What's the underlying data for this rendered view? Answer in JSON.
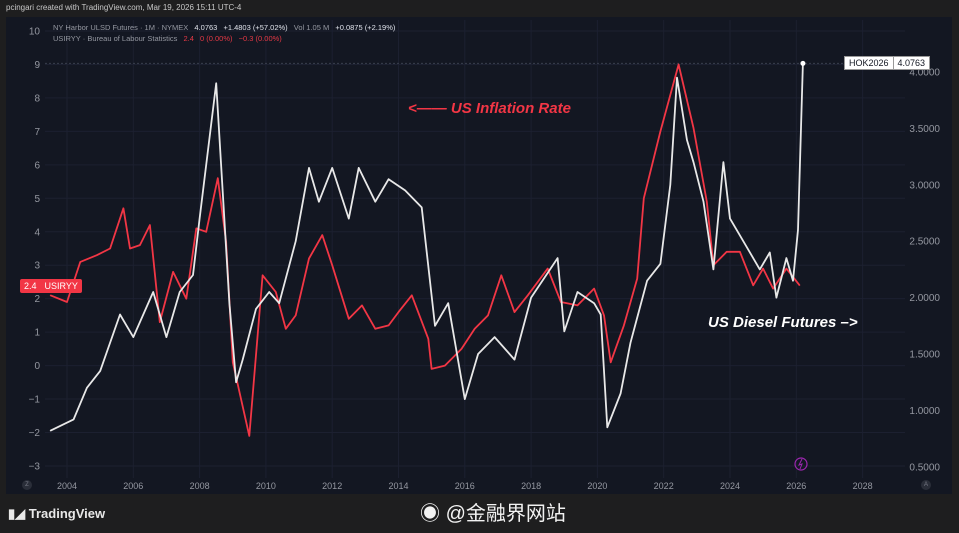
{
  "credit": "pcingari created with TradingView.com, Mar 19, 2026 15:11 UTC-4",
  "legend": {
    "series1_title": "NY Harbor ULSD Futures · 1M · NYMEX",
    "series1_price": "4.0763",
    "series1_change": "+1.4803 (+57.02%)",
    "series1_vol": "Vol 1.05 M",
    "series1_change2": "+0.0875 (+2.19%)",
    "series2_title": "USIRYY · Bureau of Labour Statistics",
    "series2_value": "2.4",
    "series2_change": "0 (0.00%)",
    "series2_change2": "−0.3 (0.00%)"
  },
  "annotations": {
    "inflation": "<—— US Inflation Rate",
    "diesel": "US Diesel Futures –>"
  },
  "tags": {
    "cpi_value": "2.4",
    "cpi_symbol": "USIRYY",
    "price_symbol": "HOK2026",
    "price_value": "4.0763"
  },
  "branding": "TradingView",
  "watermark": "@金融界网站",
  "corner_left": "Z",
  "corner_right": "A",
  "colors": {
    "cpi": "#f23645",
    "diesel": "#e8e8e8",
    "background": "#131722",
    "event_icon": "#9c27b0"
  },
  "chart_data": {
    "type": "line",
    "x_ticks": [
      "2004",
      "2006",
      "2008",
      "2010",
      "2012",
      "2014",
      "2016",
      "2018",
      "2020",
      "2022",
      "2024",
      "2026",
      "2028"
    ],
    "xlim": [
      2003.4,
      2029.5
    ],
    "left_axis": {
      "ticks": [
        "10",
        "9",
        "8",
        "7",
        "6",
        "5",
        "4",
        "3",
        "2",
        "1",
        "0",
        "−1",
        "−2",
        "−3"
      ],
      "ylim": [
        -3,
        10
      ]
    },
    "right_axis": {
      "ticks": [
        "4.0000",
        "3.5000",
        "3.0000",
        "2.5000",
        "2.0000",
        "1.5000",
        "1.0000",
        "0.5000"
      ],
      "ylim": [
        0.5,
        4.0763
      ]
    },
    "grid": true,
    "series": [
      {
        "name": "USIRYY",
        "axis": "left",
        "x": [
          2003.5,
          2004.0,
          2004.4,
          2004.9,
          2005.3,
          2005.7,
          2005.9,
          2006.2,
          2006.5,
          2006.8,
          2007.2,
          2007.6,
          2007.9,
          2008.2,
          2008.55,
          2008.8,
          2009.0,
          2009.5,
          2009.9,
          2010.3,
          2010.6,
          2010.9,
          2011.3,
          2011.7,
          2012.0,
          2012.5,
          2012.9,
          2013.3,
          2013.7,
          2014.0,
          2014.4,
          2014.9,
          2015.0,
          2015.4,
          2015.9,
          2016.3,
          2016.7,
          2017.1,
          2017.5,
          2017.9,
          2018.5,
          2018.9,
          2019.4,
          2019.9,
          2020.2,
          2020.4,
          2020.8,
          2021.2,
          2021.4,
          2021.9,
          2022.45,
          2022.9,
          2023.3,
          2023.5,
          2023.9,
          2024.3,
          2024.7,
          2025.0,
          2025.3,
          2025.7,
          2026.1
        ],
        "y": [
          2.1,
          1.9,
          3.1,
          3.3,
          3.5,
          4.7,
          3.5,
          3.6,
          4.2,
          1.3,
          2.8,
          2.0,
          4.1,
          4.0,
          5.6,
          3.7,
          0.1,
          -2.1,
          2.7,
          2.2,
          1.1,
          1.5,
          3.2,
          3.9,
          3.0,
          1.4,
          1.8,
          1.1,
          1.2,
          1.6,
          2.1,
          0.8,
          -0.1,
          0.0,
          0.5,
          1.1,
          1.5,
          2.7,
          1.6,
          2.1,
          2.9,
          1.9,
          1.8,
          2.3,
          1.5,
          0.1,
          1.2,
          2.6,
          5.0,
          7.0,
          9.0,
          7.1,
          4.9,
          3.0,
          3.4,
          3.4,
          2.4,
          2.9,
          2.3,
          2.9,
          2.4
        ]
      },
      {
        "name": "NY Harbor ULSD Futures",
        "axis": "right",
        "x": [
          2003.5,
          2004.2,
          2004.6,
          2005.0,
          2005.6,
          2006.0,
          2006.6,
          2007.0,
          2007.4,
          2007.8,
          2008.0,
          2008.5,
          2008.9,
          2009.1,
          2009.3,
          2009.7,
          2010.1,
          2010.4,
          2010.9,
          2011.3,
          2011.6,
          2012.0,
          2012.5,
          2012.8,
          2013.3,
          2013.7,
          2014.2,
          2014.7,
          2015.1,
          2015.5,
          2016.0,
          2016.4,
          2016.9,
          2017.5,
          2018.0,
          2018.8,
          2019.0,
          2019.4,
          2019.9,
          2020.1,
          2020.3,
          2020.7,
          2021.0,
          2021.5,
          2021.9,
          2022.2,
          2022.4,
          2022.7,
          2022.9,
          2023.2,
          2023.5,
          2023.8,
          2024.0,
          2024.5,
          2024.9,
          2025.2,
          2025.4,
          2025.7,
          2025.9,
          2026.05,
          2026.2
        ],
        "y": [
          0.82,
          0.92,
          1.2,
          1.35,
          1.85,
          1.65,
          2.05,
          1.65,
          2.05,
          2.2,
          2.7,
          3.9,
          1.95,
          1.25,
          1.45,
          1.9,
          2.05,
          1.95,
          2.5,
          3.15,
          2.85,
          3.15,
          2.7,
          3.15,
          2.85,
          3.05,
          2.95,
          2.8,
          1.75,
          1.95,
          1.1,
          1.5,
          1.65,
          1.45,
          2.0,
          2.35,
          1.7,
          2.05,
          1.95,
          1.85,
          0.85,
          1.15,
          1.6,
          2.15,
          2.3,
          3.0,
          3.95,
          3.4,
          3.2,
          2.85,
          2.25,
          3.2,
          2.7,
          2.45,
          2.25,
          2.4,
          2.0,
          2.35,
          2.15,
          2.6,
          4.0763
        ]
      }
    ]
  }
}
